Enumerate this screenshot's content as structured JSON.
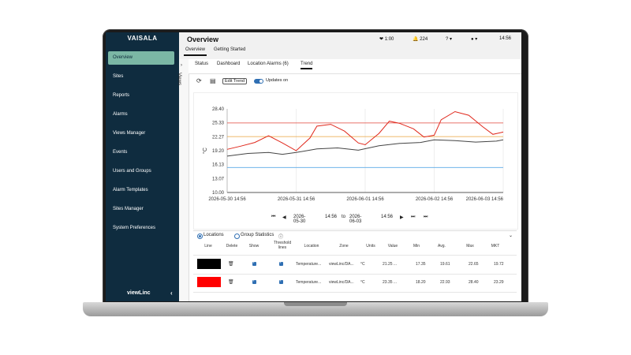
{
  "sidebar": {
    "logo": "VAISALA",
    "items": [
      {
        "label": "Overview",
        "active": true
      },
      {
        "label": "Sites"
      },
      {
        "label": "Reports"
      },
      {
        "label": "Alarms"
      },
      {
        "label": "Views Manager"
      },
      {
        "label": "Events"
      },
      {
        "label": "Users and Groups"
      },
      {
        "label": "Alarm Templates"
      },
      {
        "label": "Sites Manager"
      },
      {
        "label": "System Preferences"
      }
    ],
    "footer": "viewLinc",
    "collapse_icon": "chevron-left-icon"
  },
  "header": {
    "title": "Overview",
    "tabs": [
      {
        "label": "Overview",
        "active": true
      },
      {
        "label": "Getting Started"
      }
    ],
    "session_time": "1:00",
    "alarm_count": "224",
    "help_icon": "question-icon",
    "user_icon": "user-icon",
    "clock": "14:56"
  },
  "views_label": "Views",
  "subtabs": [
    {
      "label": "Status"
    },
    {
      "label": "Dashboard"
    },
    {
      "label": "Location Alarms (6)"
    },
    {
      "label": "Trend",
      "active": true
    }
  ],
  "toolbar": {
    "edit_trend": "Edit Trend",
    "updates": "Updates on"
  },
  "chart_data": {
    "type": "line",
    "ylabel": "°C",
    "ylim": [
      10.0,
      28.4
    ],
    "y_ticks": [
      "28.40",
      "25.33",
      "22.27",
      "19.20",
      "16.13",
      "13.07",
      "10.00"
    ],
    "x_ticks": [
      "2026-05-30 14:56",
      "2026-05-31 14:56",
      "2026-06-01 14:56",
      "2026-06-02 14:56",
      "2026-06-03 14:56"
    ],
    "thresholds": [
      {
        "value": 25.3,
        "color": "#e0453a"
      },
      {
        "value": 22.3,
        "color": "#e8a23a"
      },
      {
        "value": 15.5,
        "color": "#5aa9e6"
      }
    ],
    "series": [
      {
        "color": "#e0281c",
        "x_days": [
          0,
          0.2,
          0.4,
          0.6,
          0.8,
          1.0,
          1.2,
          1.3,
          1.5,
          1.7,
          1.9,
          2.0,
          2.2,
          2.35,
          2.5,
          2.7,
          2.85,
          3.0,
          3.1,
          3.3,
          3.5,
          3.7,
          3.85,
          4.0
        ],
        "values": [
          19.5,
          20.2,
          21.0,
          22.5,
          20.9,
          19.2,
          22.0,
          24.6,
          25.0,
          23.5,
          20.9,
          20.5,
          23.0,
          25.7,
          25.2,
          24.0,
          22.2,
          22.6,
          26.0,
          27.8,
          27.0,
          24.5,
          22.8,
          23.3
        ]
      },
      {
        "color": "#444444",
        "x_days": [
          0,
          0.3,
          0.6,
          0.8,
          1.0,
          1.3,
          1.6,
          1.9,
          2.2,
          2.5,
          2.8,
          3.0,
          3.3,
          3.6,
          3.9,
          4.0
        ],
        "values": [
          18.0,
          18.6,
          18.8,
          18.4,
          18.8,
          19.6,
          19.8,
          19.3,
          20.3,
          20.8,
          21.0,
          21.6,
          21.4,
          21.1,
          21.3,
          21.6
        ]
      }
    ]
  },
  "date_nav": {
    "from_date": "2026-05-30",
    "from_time": "14:56",
    "to": "to",
    "to_date": "2026-06-03",
    "to_time": "14:56"
  },
  "lower": {
    "options": [
      {
        "label": "Locations",
        "selected": true
      },
      {
        "label": "Group Statistics",
        "selected": false
      }
    ],
    "columns": [
      "Line",
      "Delete",
      "Show",
      "Threshold lines",
      "Location",
      "Zone",
      "Units",
      "Value",
      "Min",
      "Avg.",
      "Max",
      "MKT"
    ],
    "rows": [
      {
        "color": "#000000",
        "location": "Temperature...",
        "zone": "viewLinc/DA...",
        "units": "°C",
        "value": "21.25 ...",
        "min": "17.35",
        "avg": "19.61",
        "max": "22.65",
        "mkt": "19.72"
      },
      {
        "color": "#ff0000",
        "location": "Temperature...",
        "zone": "viewLinc/DA...",
        "units": "°C",
        "value": "23.35 ...",
        "min": "18.20",
        "avg": "22.93",
        "max": "28.40",
        "mkt": "23.29"
      }
    ]
  }
}
